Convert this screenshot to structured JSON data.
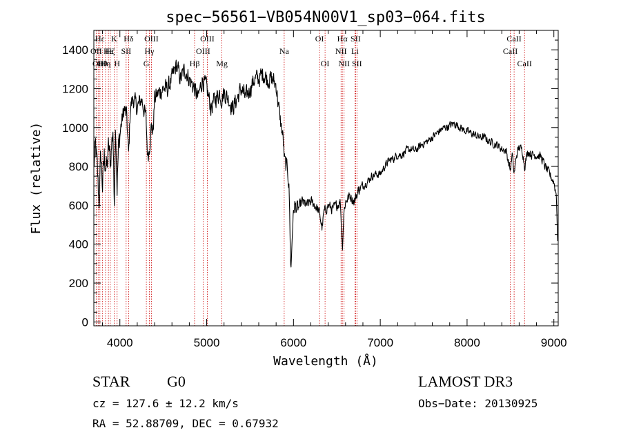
{
  "chart_data": {
    "type": "line",
    "title": "spec−56561−VB054N00V1_sp03−064.fits",
    "xlabel": "Wavelength (Å)",
    "ylabel": "Flux (relative)",
    "xlim": [
      3700,
      9050
    ],
    "ylim": [
      -20,
      1500
    ],
    "xticks": [
      4000,
      5000,
      6000,
      7000,
      8000,
      9000
    ],
    "yticks": [
      0,
      200,
      400,
      600,
      800,
      1000,
      1200,
      1400
    ],
    "series": [
      {
        "name": "flux",
        "anchors": [
          [
            3700,
            800
          ],
          [
            3720,
            900
          ],
          [
            3740,
            780
          ],
          [
            3760,
            620
          ],
          [
            3780,
            860
          ],
          [
            3800,
            700
          ],
          [
            3820,
            850
          ],
          [
            3850,
            780
          ],
          [
            3870,
            900
          ],
          [
            3890,
            820
          ],
          [
            3920,
            1000
          ],
          [
            3934,
            600
          ],
          [
            3950,
            1050
          ],
          [
            3968,
            700
          ],
          [
            3985,
            900
          ],
          [
            4010,
            1000
          ],
          [
            4050,
            1100
          ],
          [
            4080,
            1050
          ],
          [
            4101,
            850
          ],
          [
            4120,
            1100
          ],
          [
            4150,
            1150
          ],
          [
            4200,
            1100
          ],
          [
            4250,
            1150
          ],
          [
            4300,
            1050
          ],
          [
            4320,
            850
          ],
          [
            4340,
            900
          ],
          [
            4360,
            1000
          ],
          [
            4383,
            980
          ],
          [
            4400,
            1150
          ],
          [
            4450,
            1180
          ],
          [
            4500,
            1200
          ],
          [
            4550,
            1200
          ],
          [
            4600,
            1250
          ],
          [
            4650,
            1320
          ],
          [
            4700,
            1250
          ],
          [
            4750,
            1300
          ],
          [
            4800,
            1250
          ],
          [
            4861,
            1200
          ],
          [
            4900,
            1150
          ],
          [
            4950,
            1250
          ],
          [
            5000,
            1200
          ],
          [
            5050,
            1100
          ],
          [
            5100,
            1150
          ],
          [
            5150,
            1180
          ],
          [
            5172,
            1150
          ],
          [
            5200,
            1180
          ],
          [
            5250,
            1150
          ],
          [
            5300,
            1100
          ],
          [
            5350,
            1150
          ],
          [
            5400,
            1200
          ],
          [
            5450,
            1150
          ],
          [
            5500,
            1200
          ],
          [
            5550,
            1250
          ],
          [
            5600,
            1250
          ],
          [
            5650,
            1280
          ],
          [
            5700,
            1250
          ],
          [
            5750,
            1250
          ],
          [
            5800,
            1220
          ],
          [
            5830,
            1100
          ],
          [
            5860,
            1000
          ],
          [
            5880,
            950
          ],
          [
            5893,
            850
          ],
          [
            5910,
            800
          ],
          [
            5930,
            800
          ],
          [
            5950,
            680
          ],
          [
            5970,
            250
          ],
          [
            5990,
            500
          ],
          [
            6010,
            600
          ],
          [
            6050,
            580
          ],
          [
            6100,
            620
          ],
          [
            6150,
            600
          ],
          [
            6200,
            620
          ],
          [
            6250,
            600
          ],
          [
            6300,
            560
          ],
          [
            6330,
            480
          ],
          [
            6350,
            560
          ],
          [
            6400,
            600
          ],
          [
            6450,
            580
          ],
          [
            6500,
            600
          ],
          [
            6540,
            620
          ],
          [
            6563,
            380
          ],
          [
            6580,
            560
          ],
          [
            6600,
            620
          ],
          [
            6650,
            650
          ],
          [
            6700,
            620
          ],
          [
            6750,
            680
          ],
          [
            6800,
            700
          ],
          [
            6850,
            720
          ],
          [
            6900,
            750
          ],
          [
            6950,
            760
          ],
          [
            7000,
            760
          ],
          [
            7050,
            800
          ],
          [
            7100,
            830
          ],
          [
            7150,
            840
          ],
          [
            7200,
            860
          ],
          [
            7250,
            860
          ],
          [
            7300,
            880
          ],
          [
            7350,
            890
          ],
          [
            7400,
            880
          ],
          [
            7450,
            900
          ],
          [
            7500,
            920
          ],
          [
            7550,
            930
          ],
          [
            7600,
            950
          ],
          [
            7650,
            970
          ],
          [
            7700,
            990
          ],
          [
            7750,
            1000
          ],
          [
            7800,
            1010
          ],
          [
            7850,
            1020
          ],
          [
            7900,
            1010
          ],
          [
            7950,
            990
          ],
          [
            8000,
            980
          ],
          [
            8050,
            970
          ],
          [
            8100,
            960
          ],
          [
            8150,
            950
          ],
          [
            8200,
            950
          ],
          [
            8250,
            930
          ],
          [
            8300,
            920
          ],
          [
            8350,
            910
          ],
          [
            8400,
            890
          ],
          [
            8450,
            880
          ],
          [
            8498,
            780
          ],
          [
            8520,
            860
          ],
          [
            8542,
            760
          ],
          [
            8570,
            860
          ],
          [
            8600,
            900
          ],
          [
            8640,
            880
          ],
          [
            8662,
            800
          ],
          [
            8700,
            880
          ],
          [
            8750,
            860
          ],
          [
            8800,
            860
          ],
          [
            8850,
            850
          ],
          [
            8900,
            800
          ],
          [
            8950,
            760
          ],
          [
            9000,
            720
          ],
          [
            9030,
            650
          ],
          [
            9045,
            400
          ]
        ]
      }
    ],
    "lines": [
      {
        "wl": 3727,
        "label": "OII",
        "row": 1
      },
      {
        "wl": 3750,
        "label": "OII",
        "row": 2
      },
      {
        "wl": 3770,
        "label": "Hε",
        "row": 0
      },
      {
        "wl": 3798,
        "label": "Hθ",
        "row": 2
      },
      {
        "wl": 3835,
        "label": "Hη",
        "row": 2
      },
      {
        "wl": 3868,
        "label": "He",
        "row": 1
      },
      {
        "wl": 3889,
        "label": "Hζ",
        "row": 1
      },
      {
        "wl": 3934,
        "label": "K",
        "row": 0
      },
      {
        "wl": 3968,
        "label": "H",
        "row": 2
      },
      {
        "wl": 4072,
        "label": "SII",
        "row": 1
      },
      {
        "wl": 4101,
        "label": "Hδ",
        "row": 0
      },
      {
        "wl": 4305,
        "label": "G",
        "row": 2
      },
      {
        "wl": 4340,
        "label": "Hγ",
        "row": 1
      },
      {
        "wl": 4363,
        "label": "OIII",
        "row": 0
      },
      {
        "wl": 4861,
        "label": "Hβ",
        "row": 2
      },
      {
        "wl": 4959,
        "label": "OIII",
        "row": 1
      },
      {
        "wl": 5007,
        "label": "OIII",
        "row": 0
      },
      {
        "wl": 5175,
        "label": "Mg",
        "row": 2
      },
      {
        "wl": 5893,
        "label": "Na",
        "row": 1
      },
      {
        "wl": 6300,
        "label": "OI",
        "row": 0
      },
      {
        "wl": 6364,
        "label": "OI",
        "row": 2
      },
      {
        "wl": 6548,
        "label": "NII",
        "row": 1
      },
      {
        "wl": 6563,
        "label": "Hα",
        "row": 0
      },
      {
        "wl": 6583,
        "label": "NII",
        "row": 2
      },
      {
        "wl": 6708,
        "label": "Li",
        "row": 1
      },
      {
        "wl": 6716,
        "label": "SII",
        "row": 0
      },
      {
        "wl": 6731,
        "label": "SII",
        "row": 2
      },
      {
        "wl": 8498,
        "label": "CaII",
        "row": 1
      },
      {
        "wl": 8542,
        "label": "CaII",
        "row": 0
      },
      {
        "wl": 8662,
        "label": "CaII",
        "row": 2
      }
    ],
    "line_color": "#cc0000",
    "spectrum_color": "#000000"
  },
  "info": {
    "class": "STAR",
    "subclass": "G0",
    "survey": "LAMOST DR3",
    "cz": "cz = 127.6 ± 12.2 km/s",
    "obs_date": "Obs−Date: 20130925",
    "radec": "RA =  52.88709, DEC =    0.67932"
  }
}
